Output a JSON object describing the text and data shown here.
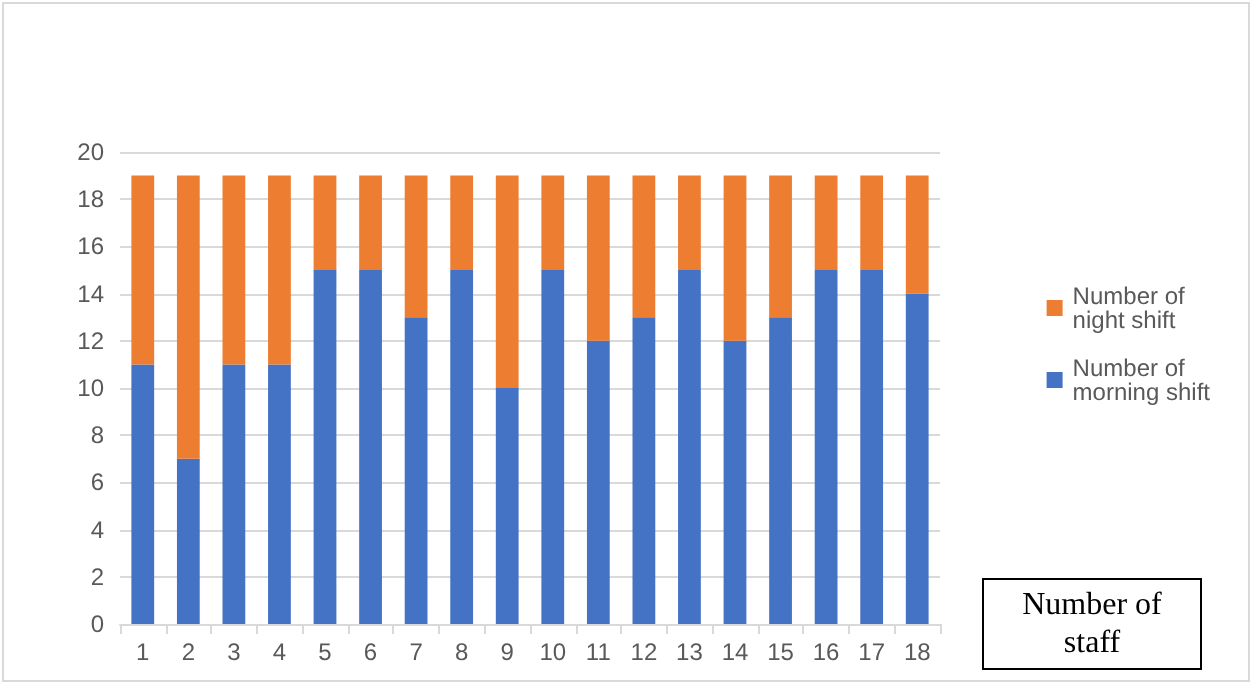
{
  "chart_data": {
    "type": "bar",
    "stacked": true,
    "categories": [
      "1",
      "2",
      "3",
      "4",
      "5",
      "6",
      "7",
      "8",
      "9",
      "10",
      "11",
      "12",
      "13",
      "14",
      "15",
      "16",
      "17",
      "18"
    ],
    "series": [
      {
        "name": "Number of morning shift",
        "color": "#4472c4",
        "values": [
          11,
          7,
          11,
          11,
          15,
          15,
          13,
          15,
          10,
          15,
          12,
          13,
          15,
          12,
          13,
          15,
          15,
          14
        ]
      },
      {
        "name": "Number of night shift",
        "color": "#ed7d31",
        "values": [
          8,
          12,
          8,
          8,
          4,
          4,
          6,
          4,
          9,
          4,
          7,
          6,
          4,
          7,
          6,
          4,
          4,
          5
        ]
      }
    ],
    "ylim": [
      0,
      20
    ],
    "yticks": [
      0,
      2,
      4,
      6,
      8,
      10,
      12,
      14,
      16,
      18,
      20
    ],
    "grid": "y",
    "legend": "right",
    "annotations": [
      "Number of staff"
    ]
  }
}
